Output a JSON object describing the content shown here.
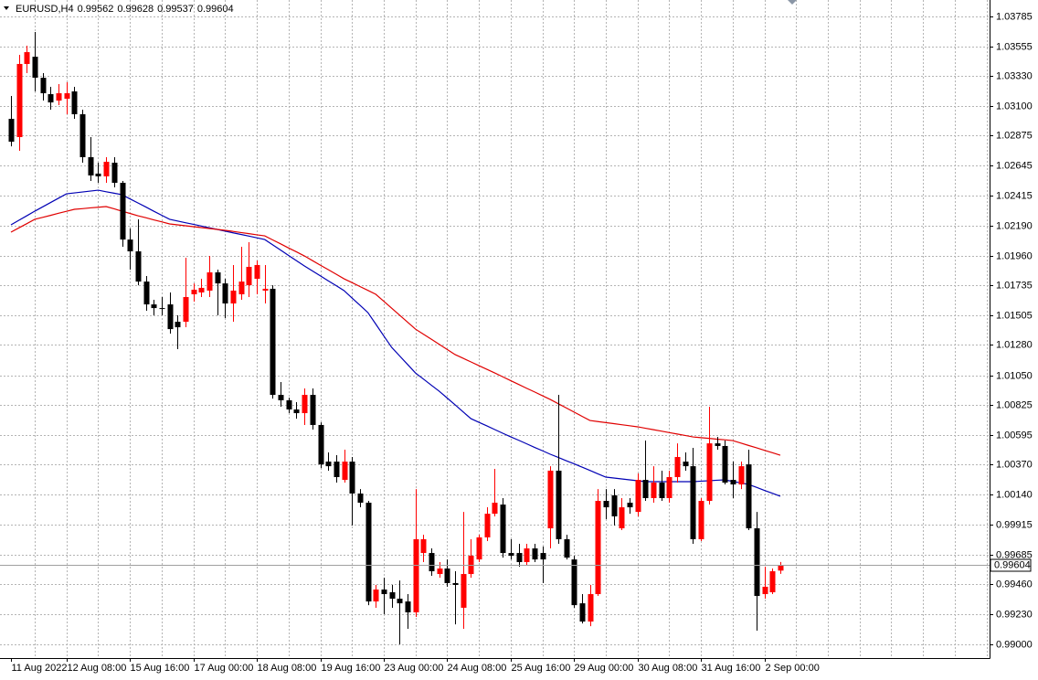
{
  "chart_data": {
    "type": "candlestick",
    "title": "EURUSD,H4",
    "categories": [
      "11 Aug 2022",
      null,
      null,
      null,
      null,
      null,
      null,
      "12 Aug 08:00",
      null,
      null,
      null,
      null,
      null,
      null,
      null,
      "15 Aug 16:00",
      null,
      null,
      null,
      null,
      null,
      null,
      null,
      "17 Aug 00:00",
      null,
      null,
      null,
      null,
      null,
      null,
      null,
      "18 Aug 08:00",
      null,
      null,
      null,
      null,
      null,
      null,
      null,
      "19 Aug 16:00",
      null,
      null,
      null,
      null,
      null,
      null,
      null,
      "23 Aug 00:00",
      null,
      null,
      null,
      null,
      null,
      null,
      null,
      "24 Aug 08:00",
      null,
      null,
      null,
      null,
      null,
      null,
      null,
      "25 Aug 16:00",
      null,
      null,
      null,
      null,
      null,
      null,
      null,
      "29 Aug 00:00",
      null,
      null,
      null,
      null,
      null,
      null,
      null,
      "30 Aug 08:00",
      null,
      null,
      null,
      null,
      null,
      null,
      null,
      "31 Aug 16:00",
      null,
      null,
      null,
      null,
      null,
      null,
      null,
      "2 Sep 00:00",
      null,
      null
    ],
    "open": [
      1.03002,
      1.02863,
      1.0342,
      1.03475,
      1.03315,
      1.0319,
      1.03141,
      1.03155,
      1.03211,
      1.03037,
      1.0271,
      1.02585,
      1.02564,
      1.02668,
      1.02515,
      1.02083,
      1.01993,
      1.01763,
      1.01589,
      1.01561,
      1.01589,
      1.01457,
      1.01457,
      1.01666,
      1.0168,
      1.01694,
      1.01833,
      1.01749,
      1.01596,
      1.01666,
      1.01735,
      1.01784,
      1.01694,
      1.01708,
      1.009,
      1.00859,
      1.00789,
      1.00761,
      1.009,
      1.00671,
      1.00392,
      1.00392,
      1.00253,
      1.00392,
      1.00149,
      1.00079,
      0.99327,
      0.99418,
      0.99397,
      0.99348,
      0.99327,
      0.99244,
      0.99696,
      0.99696,
      0.99536,
      0.99578,
      0.99467,
      0.99279,
      0.99536,
      0.99647,
      0.99815,
      0.99995,
      1.00065,
      0.99696,
      0.99696,
      0.99627,
      0.99731,
      0.99696,
      0.99884,
      1.00323,
      0.99801,
      0.99647,
      0.99313,
      0.99174,
      0.99383,
      1.00093,
      1.00135,
      0.99884,
      1.00079,
      1.00009,
      1.00253,
      1.00114,
      1.00232,
      1.00114,
      1.00274,
      1.00392,
      1.00357,
      0.99801,
      1.00093,
      1.00531,
      1.00511,
      1.00253,
      1.00218,
      1.00371,
      0.99884,
      0.99383,
      0.99397,
      0.99562
    ],
    "high": [
      1.03176,
      1.03489,
      1.03559,
      1.03663,
      1.0335,
      1.03246,
      1.03267,
      1.03281,
      1.03246,
      1.03072,
      1.02863,
      1.02668,
      1.0271,
      1.0271,
      1.02529,
      1.02167,
      1.02237,
      1.01805,
      1.01624,
      1.01645,
      1.0168,
      1.01506,
      1.01944,
      1.01749,
      1.01784,
      1.01958,
      1.01854,
      1.01784,
      1.01889,
      1.02028,
      1.02063,
      1.01923,
      1.01889,
      1.01735,
      1.00998,
      1.00879,
      1.00845,
      1.00949,
      1.00949,
      1.00691,
      1.00462,
      1.00441,
      1.00483,
      1.00427,
      1.00183,
      1.00093,
      0.99453,
      0.99508,
      0.99453,
      0.99487,
      0.99383,
      1.00183,
      0.99835,
      0.99731,
      0.99627,
      0.99647,
      0.99557,
      1.00009,
      0.99801,
      0.99835,
      1.00044,
      1.00337,
      1.00114,
      0.99801,
      0.99766,
      0.99766,
      0.99766,
      0.99745,
      1.00357,
      1.009,
      0.99835,
      0.99675,
      0.99383,
      0.99453,
      1.00183,
      1.00183,
      1.00183,
      1.00114,
      1.00114,
      1.00302,
      1.00552,
      1.00357,
      1.00323,
      1.00323,
      1.00531,
      1.00462,
      1.00497,
      1.00114,
      1.0081,
      1.0058,
      1.00552,
      1.00392,
      1.00392,
      1.00483,
      1.00009,
      0.99592,
      0.99578,
      0.99628
    ],
    "low": [
      1.02793,
      1.02759,
      1.0335,
      1.03211,
      1.03141,
      1.03072,
      1.03107,
      1.03037,
      1.03002,
      1.02668,
      1.02529,
      1.02515,
      1.02515,
      1.0248,
      1.02028,
      1.01854,
      1.01735,
      1.01541,
      1.01506,
      1.01506,
      1.01367,
      1.01248,
      1.01415,
      1.0161,
      1.01645,
      1.01645,
      1.01506,
      1.01485,
      1.01457,
      1.01624,
      1.01645,
      1.01666,
      1.01596,
      1.00872,
      1.0081,
      1.00761,
      1.00719,
      1.00671,
      1.00636,
      1.00343,
      1.00323,
      1.00232,
      1.00232,
      0.99905,
      1.00044,
      0.99299,
      0.99279,
      0.9923,
      0.99279,
      0.99,
      0.99119,
      0.99209,
      0.99627,
      0.99522,
      0.99508,
      0.99439,
      0.99153,
      0.99119,
      0.99508,
      0.99627,
      0.99787,
      0.99975,
      0.99661,
      0.99647,
      0.99592,
      0.99606,
      0.99627,
      0.99467,
      0.99731,
      0.99766,
      0.99647,
      0.99279,
      0.9916,
      0.99139,
      0.99369,
      0.99954,
      0.99905,
      0.9987,
      0.99995,
      0.99975,
      1.00093,
      1.00079,
      1.00093,
      1.00079,
      1.00232,
      1.00323,
      0.99766,
      0.99787,
      1.00065,
      1.00483,
      1.00218,
      1.00114,
      1.00183,
      0.9987,
      0.99105,
      0.99348,
      0.99383,
      0.99537
    ],
    "close": [
      1.02828,
      1.0342,
      1.0351,
      1.03315,
      1.03197,
      1.03127,
      1.03197,
      1.03197,
      1.03037,
      1.0271,
      1.02571,
      1.02564,
      1.02675,
      1.02515,
      1.02083,
      1.01993,
      1.01763,
      1.01589,
      1.01561,
      1.01555,
      1.01401,
      1.01415,
      1.01645,
      1.01701,
      1.01715,
      1.01833,
      1.01749,
      1.01596,
      1.01694,
      1.01763,
      1.01875,
      1.01889,
      1.01708,
      1.009,
      1.00859,
      1.00789,
      1.00761,
      1.009,
      1.00671,
      1.00371,
      1.00357,
      1.00274,
      1.00392,
      1.00149,
      1.00079,
      0.99327,
      0.99418,
      0.99383,
      0.99348,
      0.99313,
      0.99244,
      0.99801,
      0.99801,
      0.99557,
      0.99578,
      0.99467,
      0.99453,
      0.99536,
      0.99675,
      0.99815,
      0.99995,
      1.00079,
      0.99696,
      0.99675,
      0.99627,
      0.99731,
      0.99647,
      0.99647,
      1.00323,
      0.99801,
      0.99661,
      0.99299,
      0.99174,
      0.99383,
      1.00093,
      1.00044,
      0.99975,
      1.00044,
      1.00044,
      1.00253,
      1.00114,
      1.00232,
      1.00114,
      1.00274,
      1.00427,
      1.00357,
      0.99801,
      1.00093,
      1.00531,
      1.00511,
      1.00232,
      1.00218,
      1.00357,
      0.99884,
      0.99369,
      0.99439,
      0.99557,
      0.99604
    ],
    "up_color": "#ff0000",
    "down_color": "#000000",
    "series": [
      {
        "color": "#0000b4",
        "values": [
          1.02195,
          1.0223,
          1.02264,
          1.02299,
          1.02332,
          1.02365,
          1.02398,
          1.02431,
          1.02438,
          1.02445,
          1.02452,
          1.02459,
          1.02447,
          1.02436,
          1.02424,
          1.02393,
          1.02362,
          1.02331,
          1.02299,
          1.02268,
          1.02237,
          1.02224,
          1.02211,
          1.02199,
          1.02186,
          1.02173,
          1.0216,
          1.02147,
          1.02134,
          1.02122,
          1.02109,
          1.02096,
          1.02083,
          1.02043,
          1.02003,
          1.01962,
          1.01922,
          1.01882,
          1.01844,
          1.01807,
          1.01769,
          1.01732,
          1.01694,
          1.01638,
          1.01583,
          1.01527,
          1.01439,
          1.0135,
          1.01262,
          1.01197,
          1.01132,
          1.01067,
          1.01021,
          1.00974,
          1.00928,
          1.00876,
          1.00824,
          1.00771,
          1.00719,
          1.00691,
          1.00664,
          1.00636,
          1.00608,
          1.00581,
          1.00555,
          1.00528,
          1.00501,
          1.00475,
          1.00448,
          1.00424,
          1.00399,
          1.00375,
          1.0035,
          1.00325,
          1.00299,
          1.00274,
          1.00267,
          1.0026,
          1.00253,
          1.00246,
          1.00239,
          1.00239,
          1.00239,
          1.00239,
          1.00239,
          1.00239,
          1.00239,
          1.00243,
          1.00246,
          1.0025,
          1.00253,
          1.00241,
          1.0023,
          1.00218,
          1.00196,
          1.00173,
          1.00151,
          1.00128
        ]
      },
      {
        "color": "#e00000",
        "values": [
          1.02139,
          1.02172,
          1.02204,
          1.02237,
          1.02252,
          1.02267,
          1.02283,
          1.02298,
          1.02313,
          1.02318,
          1.02324,
          1.02329,
          1.02334,
          1.02317,
          1.02299,
          1.02282,
          1.02264,
          1.02249,
          1.02233,
          1.02218,
          1.02202,
          1.02195,
          1.02188,
          1.02181,
          1.02174,
          1.02167,
          1.0216,
          1.02153,
          1.02145,
          1.02136,
          1.02128,
          1.02119,
          1.02111,
          1.0208,
          1.0205,
          1.02019,
          1.01989,
          1.01958,
          1.01923,
          1.01888,
          1.01854,
          1.01819,
          1.01784,
          1.01755,
          1.01725,
          1.01696,
          1.01666,
          1.01613,
          1.0156,
          1.01507,
          1.01454,
          1.01401,
          1.01362,
          1.01324,
          1.01285,
          1.01246,
          1.01207,
          1.01179,
          1.01151,
          1.01123,
          1.01095,
          1.01067,
          1.01038,
          1.01009,
          1.0098,
          1.00951,
          1.00923,
          1.00894,
          1.00865,
          1.00833,
          1.00801,
          1.00769,
          1.00737,
          1.00705,
          1.00697,
          1.00689,
          1.00681,
          1.00673,
          1.00665,
          1.00657,
          1.00646,
          1.00635,
          1.00624,
          1.00613,
          1.00602,
          1.00591,
          1.0058,
          1.00574,
          1.00569,
          1.00563,
          1.00558,
          1.00552,
          1.00534,
          1.00515,
          1.00497,
          1.00478,
          1.0046,
          1.00441
        ]
      }
    ],
    "ylim": [
      0.98896,
      1.03907
    ],
    "yticks": [
      1.03785,
      1.03555,
      {
        "value": 1.0333,
        "label": "1.03330"
      },
      {
        "value": 1.031,
        "label": "1.03100"
      },
      1.02875,
      1.02645,
      1.02415,
      {
        "value": 1.0219,
        "label": "1.02190"
      },
      {
        "value": 1.0196,
        "label": "1.01960"
      },
      1.01735,
      1.01505,
      {
        "value": 1.0128,
        "label": "1.01280"
      },
      {
        "value": 1.0105,
        "label": "1.01050"
      },
      1.00825,
      1.00595,
      {
        "value": 1.0037,
        "label": "1.00370"
      },
      {
        "value": 1.0014,
        "label": "1.00140"
      },
      0.99915,
      0.99685,
      {
        "value": 0.9946,
        "label": "0.99460"
      },
      {
        "value": 0.9923,
        "label": "0.99230"
      },
      {
        "value": 0.99,
        "label": "0.99000"
      }
    ],
    "grid": true
  }
}
